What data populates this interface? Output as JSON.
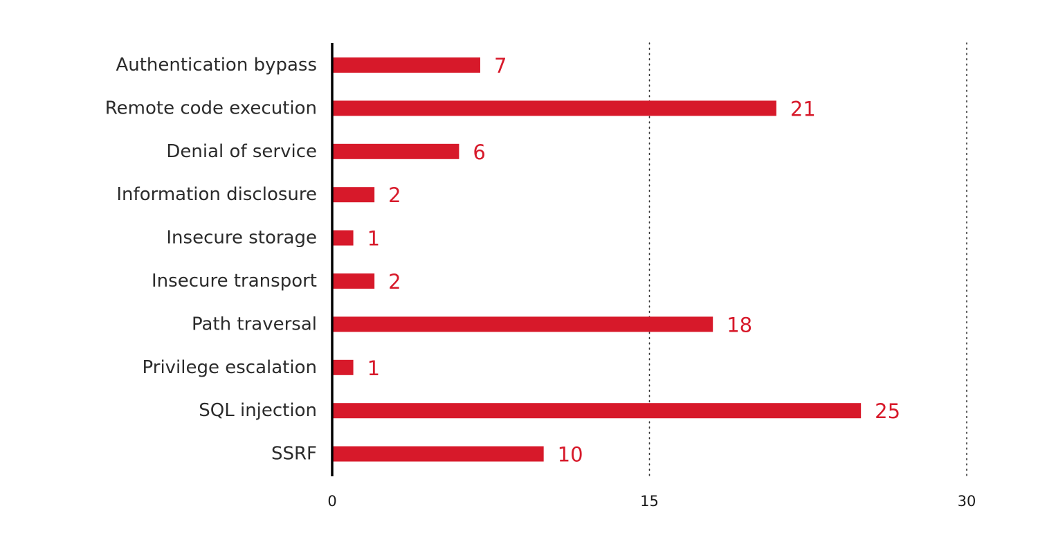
{
  "chart_data": {
    "type": "bar",
    "orientation": "horizontal",
    "title": "",
    "xlabel": "",
    "ylabel": "",
    "categories": [
      "Authentication bypass",
      "Remote code execution",
      "Denial of service",
      "Information disclosure",
      "Insecure storage",
      "Insecure transport",
      "Path traversal",
      "Privilege escalation",
      "SQL injection",
      "SSRF"
    ],
    "values": [
      7,
      21,
      6,
      2,
      1,
      2,
      18,
      1,
      25,
      10
    ],
    "xlim": [
      0,
      30
    ],
    "xticks": [
      0,
      15,
      30
    ],
    "xtick_labels": [
      "0",
      "15",
      "30"
    ],
    "grid": "vertical dotted lines at 15 and 30",
    "legend": "none",
    "bar_color": "#d7192a",
    "value_label_color": "#d7192a",
    "axis_color": "#000000",
    "category_label_color": "#2b2b2b"
  }
}
